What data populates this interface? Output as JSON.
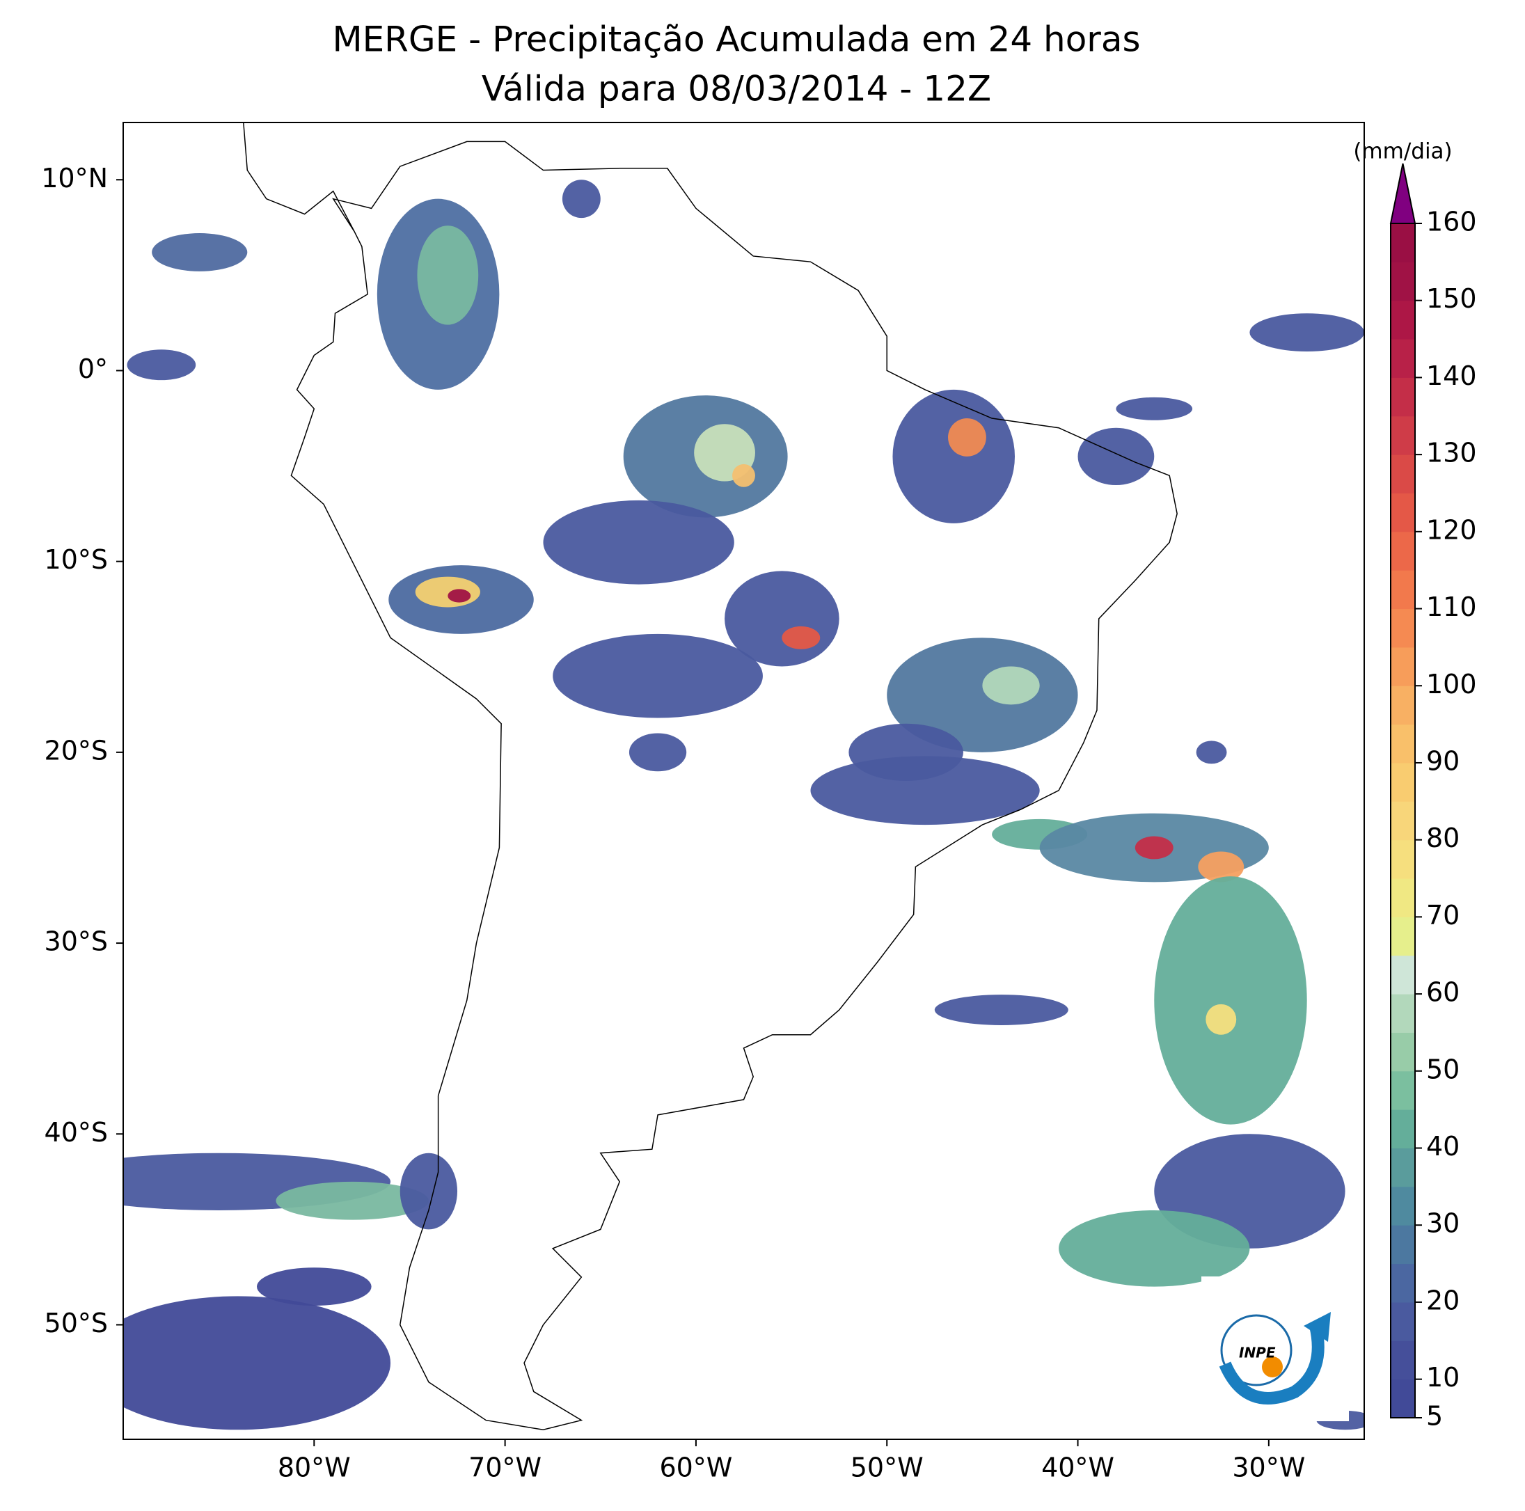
{
  "chart_data": {
    "type": "map",
    "title": "MERGE - Precipitação Acumulada em 24 horas",
    "subtitle": "Válida para 08/03/2014 - 12Z",
    "xlim": [
      -90,
      -25
    ],
    "ylim": [
      -56,
      13
    ],
    "xticks": [
      {
        "value": -80,
        "label": "80°W"
      },
      {
        "value": -70,
        "label": "70°W"
      },
      {
        "value": -60,
        "label": "60°W"
      },
      {
        "value": -50,
        "label": "50°W"
      },
      {
        "value": -40,
        "label": "40°W"
      },
      {
        "value": -30,
        "label": "30°W"
      }
    ],
    "yticks": [
      {
        "value": 10,
        "label": "10°N"
      },
      {
        "value": 0,
        "label": "0°"
      },
      {
        "value": -10,
        "label": "10°S"
      },
      {
        "value": -20,
        "label": "20°S"
      },
      {
        "value": -30,
        "label": "30°S"
      },
      {
        "value": -40,
        "label": "40°S"
      },
      {
        "value": -50,
        "label": "50°S"
      }
    ],
    "colorbar": {
      "label": "(mm/dia)",
      "lim": [
        5,
        160
      ],
      "ticks": [
        5,
        10,
        20,
        30,
        40,
        50,
        60,
        70,
        80,
        90,
        100,
        110,
        120,
        130,
        140,
        150,
        160
      ],
      "colors": [
        "#414a98",
        "#454f9a",
        "#4a5a9f",
        "#4b67a1",
        "#4c78a0",
        "#4f8a9f",
        "#5a9c9c",
        "#64ae9a",
        "#7bbf9f",
        "#98cca8",
        "#b2d8bb",
        "#cfe6d8",
        "#e6ef8c",
        "#f0e883",
        "#f6df7e",
        "#f8d67a",
        "#f9cc70",
        "#f9c06a",
        "#f8b063",
        "#f79d5a",
        "#f58a52",
        "#f2794c",
        "#ec6849",
        "#e45847",
        "#da4a47",
        "#cf3c48",
        "#c42e48",
        "#b82148",
        "#ad1746",
        "#a01245",
        "#9a0f44"
      ],
      "extend_color": "#800080"
    },
    "grid": false,
    "logo_text": "INPE"
  }
}
